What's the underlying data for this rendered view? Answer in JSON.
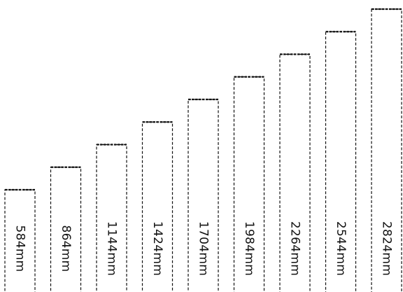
{
  "chart_data": {
    "type": "bar",
    "categories": [
      "584mm",
      "864mm",
      "1144mm",
      "1424mm",
      "1704mm",
      "1984mm",
      "2264mm",
      "2544mm",
      "2824mm"
    ],
    "values": [
      584,
      864,
      1144,
      1424,
      1704,
      1984,
      2264,
      2544,
      2824
    ],
    "unit": "mm",
    "labels": [
      "584mm",
      "864mm",
      "1144mm",
      "1424mm",
      "1704mm",
      "1984mm",
      "2264mm",
      "2544mm",
      "2824mm"
    ],
    "label_orientation": "rotated-90-clockwise",
    "outline_style": "dashed",
    "grid": false,
    "legend": "none",
    "colors": {
      "stroke": "#111111",
      "fill": "#ffffff",
      "text": "#111111",
      "background": "#ffffff"
    }
  }
}
